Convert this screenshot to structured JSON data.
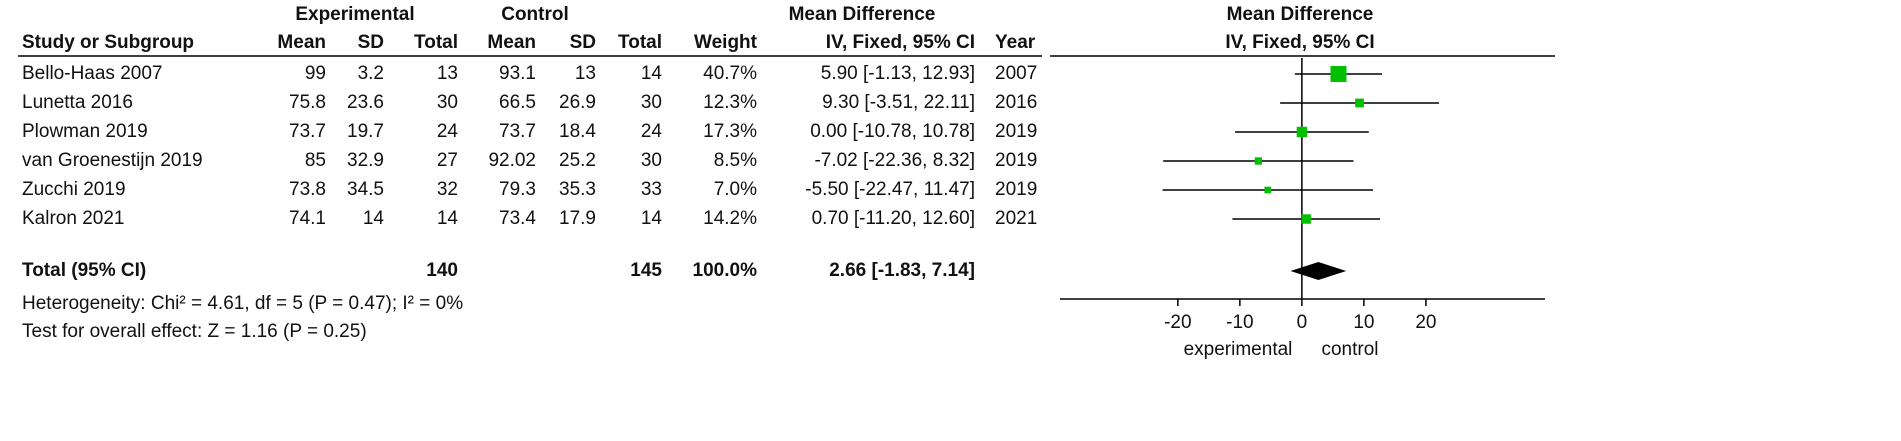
{
  "chart_data": {
    "type": "forest",
    "headers": {
      "group_exp": "Experimental",
      "group_ctl": "Control",
      "group_md": "Mean Difference",
      "plot_title": "Mean Difference",
      "plot_method": "IV, Fixed, 95% CI",
      "columns": [
        "Study or Subgroup",
        "Mean",
        "SD",
        "Total",
        "Mean",
        "SD",
        "Total",
        "Weight",
        "IV, Fixed, 95% CI",
        "Year"
      ]
    },
    "studies": [
      {
        "study": "Bello-Haas 2007",
        "exp_mean": 99,
        "exp_sd": 3.2,
        "exp_total": 13,
        "ctl_mean": 93.1,
        "ctl_sd": 13,
        "ctl_total": 14,
        "weight": 40.7,
        "weight_label": "40.7%",
        "md": 5.9,
        "lo": -1.13,
        "hi": 12.93,
        "ci_label": "5.90 [-1.13, 12.93]",
        "year": 2007
      },
      {
        "study": "Lunetta 2016",
        "exp_mean": 75.8,
        "exp_sd": 23.6,
        "exp_total": 30,
        "ctl_mean": 66.5,
        "ctl_sd": 26.9,
        "ctl_total": 30,
        "weight": 12.3,
        "weight_label": "12.3%",
        "md": 9.3,
        "lo": -3.51,
        "hi": 22.11,
        "ci_label": "9.30 [-3.51, 22.11]",
        "year": 2016
      },
      {
        "study": "Plowman 2019",
        "exp_mean": 73.7,
        "exp_sd": 19.7,
        "exp_total": 24,
        "ctl_mean": 73.7,
        "ctl_sd": 18.4,
        "ctl_total": 24,
        "weight": 17.3,
        "weight_label": "17.3%",
        "md": 0,
        "lo": -10.78,
        "hi": 10.78,
        "ci_label": "0.00 [-10.78, 10.78]",
        "year": 2019
      },
      {
        "study": "van Groenestijn 2019",
        "exp_mean": 85,
        "exp_sd": 32.9,
        "exp_total": 27,
        "ctl_mean": 92.02,
        "ctl_sd": 25.2,
        "ctl_total": 30,
        "weight": 8.5,
        "weight_label": "8.5%",
        "md": -7.02,
        "lo": -22.36,
        "hi": 8.32,
        "ci_label": "-7.02 [-22.36, 8.32]",
        "year": 2019
      },
      {
        "study": "Zucchi 2019",
        "exp_mean": 73.8,
        "exp_sd": 34.5,
        "exp_total": 32,
        "ctl_mean": 79.3,
        "ctl_sd": 35.3,
        "ctl_total": 33,
        "weight": 7.0,
        "weight_label": "7.0%",
        "md": -5.5,
        "lo": -22.47,
        "hi": 11.47,
        "ci_label": "-5.50 [-22.47, 11.47]",
        "year": 2019
      },
      {
        "study": "Kalron 2021",
        "exp_mean": 74.1,
        "exp_sd": 14,
        "exp_total": 14,
        "ctl_mean": 73.4,
        "ctl_sd": 17.9,
        "ctl_total": 14,
        "weight": 14.2,
        "weight_label": "14.2%",
        "md": 0.7,
        "lo": -11.2,
        "hi": 12.6,
        "ci_label": "0.70 [-11.20, 12.60]",
        "year": 2021
      }
    ],
    "total": {
      "study": "Total (95% CI)",
      "exp_total": 140,
      "ctl_total": 145,
      "weight": 100,
      "weight_label": "100.0%",
      "md": 2.66,
      "lo": -1.83,
      "hi": 7.14,
      "ci_label": "2.66 [-1.83, 7.14]"
    },
    "heterogeneity": "Heterogeneity: Chi² = 4.61, df = 5 (P = 0.47); I² = 0%",
    "overall_effect": "Test for overall effect: Z = 1.16 (P = 0.25)",
    "xlim": [
      -39,
      39.2
    ],
    "xticks": [
      -20,
      -10,
      0,
      10,
      20
    ],
    "favours_left": "experimental",
    "favours_right": "control",
    "color": "#00c000"
  }
}
